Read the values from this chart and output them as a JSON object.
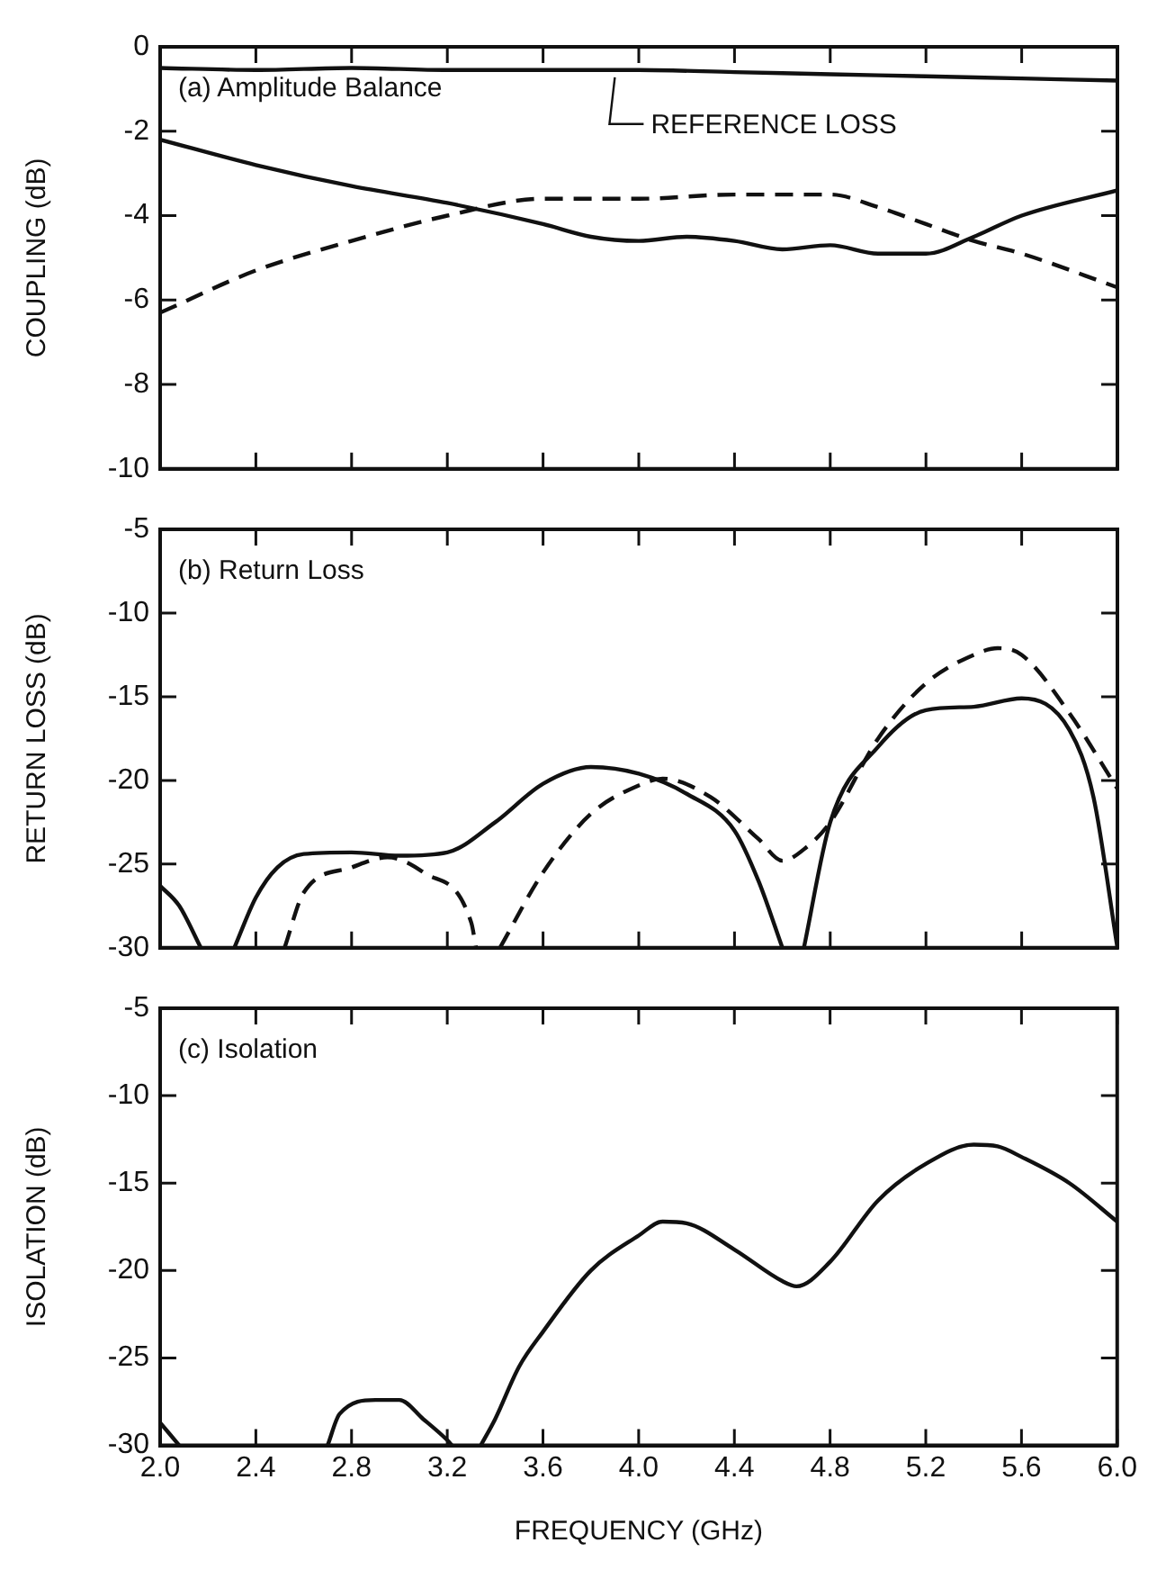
{
  "chart_data": [
    {
      "type": "line",
      "title": "(a) Amplitude Balance",
      "ylabel": "COUPLING (dB)",
      "xlim": [
        2.0,
        6.0
      ],
      "xticks": [
        {
          "value": 2.0,
          "label": null
        },
        {
          "value": 2.4,
          "label": null
        },
        {
          "value": 2.8,
          "label": null
        },
        {
          "value": 3.2,
          "label": null
        },
        {
          "value": 3.6,
          "label": null
        },
        {
          "value": 4.0,
          "label": null
        },
        {
          "value": 4.4,
          "label": null
        },
        {
          "value": 4.8,
          "label": null
        },
        {
          "value": 5.2,
          "label": null
        },
        {
          "value": 5.6,
          "label": null
        },
        {
          "value": 6.0,
          "label": null
        }
      ],
      "ylim": [
        -10,
        0
      ],
      "yticks": [
        -10,
        -8,
        -6,
        -4,
        -2,
        0
      ],
      "tick_labels": "y",
      "annotations": [
        {
          "text": "REFERENCE LOSS",
          "x": 3.9,
          "y": -0.55
        }
      ],
      "series": [
        {
          "color": "#111111",
          "line_style": "solid",
          "x": [
            2.0,
            2.4,
            2.8,
            3.2,
            3.6,
            4.0,
            4.4,
            4.8,
            5.2,
            5.6,
            6.0
          ],
          "values": [
            -0.5,
            -0.55,
            -0.5,
            -0.55,
            -0.55,
            -0.55,
            -0.6,
            -0.65,
            -0.7,
            -0.75,
            -0.8
          ]
        },
        {
          "color": "#111111",
          "line_style": "solid",
          "x": [
            2.0,
            2.4,
            2.8,
            3.2,
            3.6,
            3.8,
            4.0,
            4.2,
            4.4,
            4.6,
            4.8,
            5.0,
            5.2,
            5.4,
            5.6,
            6.0
          ],
          "values": [
            -2.2,
            -2.8,
            -3.3,
            -3.7,
            -4.2,
            -4.5,
            -4.6,
            -4.5,
            -4.6,
            -4.8,
            -4.7,
            -4.9,
            -4.9,
            -4.5,
            -4.0,
            -3.4
          ]
        },
        {
          "color": "#111111",
          "line_style": "dashed",
          "x": [
            2.0,
            2.4,
            2.8,
            3.2,
            3.6,
            4.0,
            4.4,
            4.8,
            5.0,
            5.2,
            5.4,
            5.6,
            6.0
          ],
          "values": [
            -6.3,
            -5.3,
            -4.6,
            -4.0,
            -3.6,
            -3.6,
            -3.5,
            -3.5,
            -3.8,
            -4.2,
            -4.6,
            -4.9,
            -5.7
          ]
        }
      ]
    },
    {
      "type": "line",
      "title": "(b) Return Loss",
      "ylabel": "RETURN LOSS (dB)",
      "xlim": [
        2.0,
        6.0
      ],
      "xticks": [
        {
          "value": 2.0,
          "label": null
        },
        {
          "value": 2.4,
          "label": null
        },
        {
          "value": 2.8,
          "label": null
        },
        {
          "value": 3.2,
          "label": null
        },
        {
          "value": 3.6,
          "label": null
        },
        {
          "value": 4.0,
          "label": null
        },
        {
          "value": 4.4,
          "label": null
        },
        {
          "value": 4.8,
          "label": null
        },
        {
          "value": 5.2,
          "label": null
        },
        {
          "value": 5.6,
          "label": null
        },
        {
          "value": 6.0,
          "label": null
        }
      ],
      "ylim": [
        -30,
        -5
      ],
      "yticks": [
        -30,
        -25,
        -20,
        -15,
        -10,
        -5
      ],
      "tick_labels": "y",
      "series": [
        {
          "color": "#111111",
          "line_style": "solid",
          "x": [
            2.0,
            2.08,
            2.17,
            2.24,
            2.31,
            2.4,
            2.49,
            2.6,
            2.8,
            3.0,
            3.2,
            3.4,
            3.6,
            3.8,
            4.0,
            4.2,
            4.4,
            4.5,
            4.6,
            4.64,
            4.69,
            4.8,
            5.0,
            5.2,
            5.4,
            5.6,
            5.8,
            5.9,
            6.0
          ],
          "values": [
            -26.3,
            -27.5,
            -30,
            null,
            -30,
            -27,
            -25.2,
            -24.4,
            -24.3,
            -24.5,
            -24.3,
            -22.5,
            -20.2,
            -19.2,
            -19.6,
            -20.8,
            -23,
            -26,
            -30,
            null,
            -30,
            -22.5,
            -18,
            -15.8,
            -15.6,
            -15.1,
            -17,
            -21,
            -30
          ]
        },
        {
          "color": "#111111",
          "line_style": "dashed",
          "x": [
            2.52,
            2.6,
            2.8,
            2.95,
            3.1,
            3.3,
            3.32,
            3.37,
            3.42,
            3.6,
            3.8,
            4.0,
            4.1,
            4.3,
            4.5,
            4.6,
            4.7,
            4.8,
            5.0,
            5.2,
            5.4,
            5.5,
            5.6,
            5.8,
            6.0
          ],
          "values": [
            -30,
            -26.7,
            -25.2,
            -24.6,
            -25.5,
            -28.5,
            -30,
            null,
            -30,
            -25.5,
            -22,
            -20.3,
            -19.9,
            -21,
            -23.5,
            -24.8,
            -24,
            -22.5,
            -17.5,
            -14.2,
            -12.5,
            -12.1,
            -12.5,
            -16,
            -20.5
          ]
        }
      ]
    },
    {
      "type": "line",
      "title": "(c) Isolation",
      "ylabel": "ISOLATION (dB)",
      "xlabel": "FREQUENCY (GHz)",
      "xlim": [
        2.0,
        6.0
      ],
      "xticks": [
        {
          "value": 2.0,
          "label": "2.0"
        },
        {
          "value": 2.4,
          "label": "2.4"
        },
        {
          "value": 2.8,
          "label": "2.8"
        },
        {
          "value": 3.2,
          "label": "3.2"
        },
        {
          "value": 3.6,
          "label": "3.6"
        },
        {
          "value": 4.0,
          "label": "4.0"
        },
        {
          "value": 4.4,
          "label": "4.4"
        },
        {
          "value": 4.8,
          "label": "4.8"
        },
        {
          "value": 5.2,
          "label": "5.2"
        },
        {
          "value": 5.6,
          "label": "5.6"
        },
        {
          "value": 6.0,
          "label": "6.0"
        }
      ],
      "ylim": [
        -30,
        -5
      ],
      "yticks": [
        -30,
        -25,
        -20,
        -15,
        -10,
        -5
      ],
      "series": [
        {
          "color": "#111111",
          "line_style": "solid",
          "x": [
            2.0,
            2.08,
            2.4,
            2.7,
            2.75,
            2.9,
            3.0,
            3.1,
            3.2,
            3.22,
            3.28,
            3.34,
            3.4,
            3.5,
            3.6,
            3.8,
            4.0,
            4.1,
            4.2,
            4.4,
            4.6,
            4.66,
            4.8,
            5.0,
            5.2,
            5.4,
            5.5,
            5.6,
            5.8,
            6.0
          ],
          "values": [
            -28.7,
            -30,
            null,
            -30,
            -28.2,
            -27.4,
            -27.4,
            -28.5,
            -29.7,
            -30,
            null,
            -30,
            -28.5,
            -25.5,
            -23.5,
            -20,
            -18,
            -17.2,
            -17.3,
            -18.8,
            -20.6,
            -20.9,
            -19.5,
            -16,
            -13.9,
            -12.8,
            -12.9,
            -13.5,
            -15,
            -17.2
          ]
        }
      ]
    }
  ]
}
